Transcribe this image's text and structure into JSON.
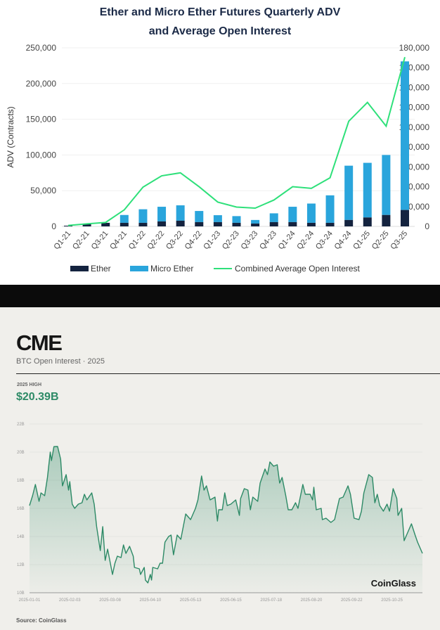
{
  "chart_data": [
    {
      "type": "bar",
      "title": "Ether and Micro Ether Futures Quarterly ADV and Average Open Interest",
      "title_lines": [
        "Ether and Micro Ether Futures Quarterly ADV",
        "and Average Open Interest"
      ],
      "ylabel": "ADV (Contracts)",
      "ylim": [
        0,
        250000
      ],
      "y2lim": [
        0,
        180000
      ],
      "yticks": [
        "0",
        "50,000",
        "100,000",
        "150,000",
        "200,000",
        "250,000"
      ],
      "y2ticks": [
        "0",
        "20,000",
        "40,000",
        "60,000",
        "80,000",
        "100,000",
        "120,000",
        "140,000",
        "160,000",
        "180,000"
      ],
      "stacked": true,
      "legend_position": "bottom",
      "categories": [
        "Q1-21",
        "Q2-21",
        "Q3-21",
        "Q4-21",
        "Q1-22",
        "Q2-22",
        "Q3-22",
        "Q4-22",
        "Q1-23",
        "Q2-23",
        "Q3-23",
        "Q4-23",
        "Q1-24",
        "Q2-24",
        "Q3-24",
        "Q4-24",
        "Q1-25",
        "Q2-25",
        "Q3-25"
      ],
      "series": [
        {
          "name": "Ether",
          "type": "bar",
          "color": "#14233f",
          "values": [
            1000,
            3000,
            5000,
            5000,
            5000,
            7000,
            8000,
            6000,
            6000,
            5000,
            4000,
            6000,
            6000,
            5000,
            5000,
            9000,
            12500,
            16000,
            23000
          ]
        },
        {
          "name": "Micro Ether",
          "type": "bar",
          "color": "#2aa5dc",
          "values": [
            0,
            0,
            0,
            11000,
            19000,
            20500,
            21500,
            15600,
            9700,
            9400,
            5000,
            12300,
            21500,
            27000,
            38500,
            76000,
            76500,
            84000,
            208000
          ]
        },
        {
          "name": "Combined Average Open Interest",
          "type": "line",
          "axis": "right",
          "color": "#2ee07a",
          "values": [
            1000,
            2600,
            4000,
            16700,
            39600,
            51000,
            54000,
            40000,
            24500,
            19500,
            18400,
            26600,
            40000,
            38400,
            49000,
            106000,
            125000,
            101000,
            170600
          ]
        }
      ]
    },
    {
      "type": "area",
      "title": "CME",
      "subtitle": "BTC Open Interest · 2025",
      "highlight_label": "2025 HIGH",
      "highlight_value": "$20.39B",
      "watermark": "CoinGlass",
      "source": "Source: CoinGlass",
      "color": "#2d8a66",
      "ylim": [
        10,
        22
      ],
      "yticks": [
        "10B",
        "12B",
        "14B",
        "16B",
        "18B",
        "20B",
        "22B"
      ],
      "xlabel_unit": "days since 2025-01-01",
      "xlim": [
        0,
        322
      ],
      "xticks": [
        {
          "day": 0,
          "label": "2025-01-01"
        },
        {
          "day": 33,
          "label": "2025-02-03"
        },
        {
          "day": 66,
          "label": "2025-03-08"
        },
        {
          "day": 99,
          "label": "2025-04-10"
        },
        {
          "day": 132,
          "label": "2025-05-13"
        },
        {
          "day": 165,
          "label": "2025-06-15"
        },
        {
          "day": 198,
          "label": "2025-07-18"
        },
        {
          "day": 231,
          "label": "2025-08-20"
        },
        {
          "day": 264,
          "label": "2025-09-22"
        },
        {
          "day": 297,
          "label": "2025-10-25"
        }
      ],
      "x": [
        0,
        2.5,
        4.8,
        7.8,
        9.4,
        12.4,
        14.7,
        17,
        18,
        20,
        23,
        25.5,
        27,
        30,
        32,
        33,
        35,
        37,
        40,
        43,
        45,
        47,
        51,
        53,
        55,
        58,
        60,
        62,
        64,
        66,
        68,
        70,
        72,
        75,
        77,
        79,
        82,
        85,
        86,
        90,
        91,
        94,
        95,
        97,
        99,
        100,
        101,
        105,
        107,
        109,
        111,
        114,
        116,
        118,
        121,
        124,
        128,
        132,
        136,
        138,
        141,
        143,
        145,
        148,
        152,
        154,
        155,
        158,
        160,
        162,
        165,
        169,
        172,
        173,
        176,
        179,
        181,
        183,
        187,
        189,
        193,
        195,
        197,
        200,
        203,
        205,
        207,
        210,
        212,
        215,
        218,
        220,
        224,
        226,
        230,
        232,
        233,
        235,
        239,
        240,
        243,
        247,
        250,
        254,
        257,
        261,
        263,
        266,
        270,
        272,
        274,
        278,
        281,
        283,
        285,
        287,
        290,
        293,
        295,
        298,
        301,
        302,
        305,
        307,
        310,
        313,
        316,
        318,
        320,
        322
      ],
      "values": [
        16.2,
        16.9,
        17.7,
        16.5,
        17.1,
        16.9,
        18.2,
        20.0,
        19.4,
        20.39,
        20.4,
        19.5,
        17.6,
        18.4,
        17.3,
        17.9,
        16.3,
        16.0,
        16.3,
        16.4,
        17.0,
        16.6,
        17.1,
        16.3,
        14.7,
        13.0,
        14.7,
        12.3,
        13.1,
        12.2,
        11.3,
        12.1,
        12.6,
        12.5,
        13.4,
        12.8,
        13.3,
        12.6,
        11.8,
        11.7,
        11.3,
        11.8,
        10.9,
        10.7,
        11.3,
        10.9,
        11.8,
        11.7,
        12.1,
        12.1,
        13.6,
        14.0,
        14.1,
        12.7,
        14.1,
        13.8,
        15.6,
        15.2,
        16.0,
        16.6,
        18.3,
        17.3,
        17.6,
        16.6,
        16.8,
        15.1,
        15.9,
        15.9,
        17.1,
        16.2,
        16.3,
        16.6,
        15.5,
        16.7,
        17.4,
        17.3,
        15.9,
        16.8,
        16.5,
        17.8,
        18.8,
        18.4,
        19.3,
        19.0,
        19.1,
        17.8,
        18.2,
        16.9,
        15.9,
        15.9,
        16.4,
        16.0,
        17.7,
        17.0,
        17.0,
        16.6,
        17.5,
        15.9,
        16.0,
        15.2,
        15.3,
        15.0,
        15.2,
        16.7,
        16.8,
        17.6,
        17.0,
        15.3,
        15.2,
        15.8,
        17.1,
        18.4,
        18.2,
        16.4,
        17.0,
        16.2,
        15.8,
        16.3,
        15.8,
        17.4,
        16.7,
        15.5,
        16.0,
        13.7,
        14.3,
        14.9,
        14.1,
        13.6,
        13.2,
        12.8
      ]
    }
  ]
}
